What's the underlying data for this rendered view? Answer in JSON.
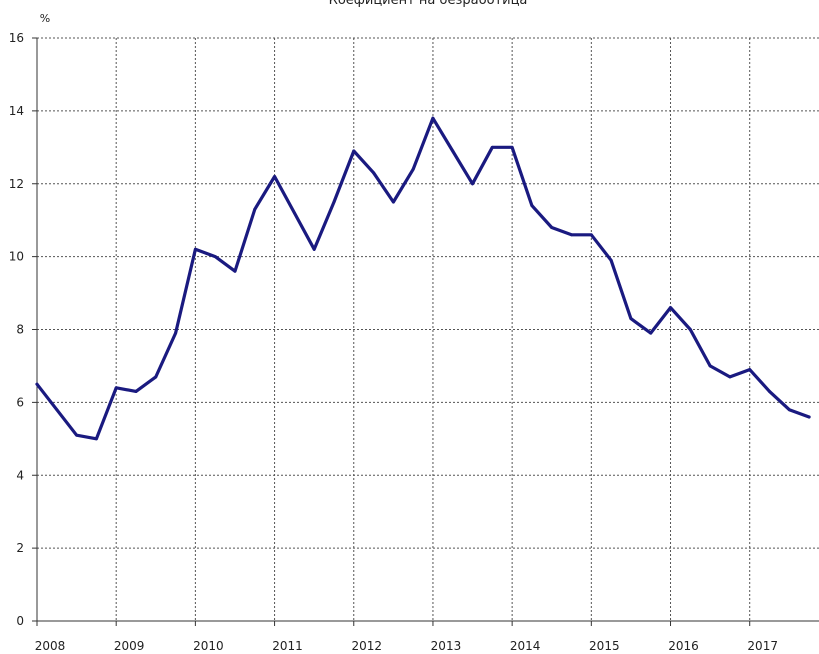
{
  "chart_data": {
    "type": "line",
    "title": "Коефициент на безработица",
    "ylabel": "%",
    "xlabel": "",
    "ylim": [
      0,
      16
    ],
    "yticks": [
      0,
      2,
      4,
      6,
      8,
      10,
      12,
      14,
      16
    ],
    "xlim": [
      2008,
      2017.875
    ],
    "xticks": [
      "2008",
      "2009",
      "2010",
      "2011",
      "2012",
      "2013",
      "2014",
      "2015",
      "2016",
      "2017"
    ],
    "grid": true,
    "line_color": "#1a1a80",
    "series": [
      {
        "x": [
          2008.0,
          2008.25,
          2008.5,
          2008.75,
          2009.0,
          2009.25,
          2009.5,
          2009.75,
          2010.0,
          2010.25,
          2010.5,
          2010.75,
          2011.0,
          2011.25,
          2011.5,
          2011.75,
          2012.0,
          2012.25,
          2012.5,
          2012.75,
          2013.0,
          2013.25,
          2013.5,
          2013.75,
          2014.0,
          2014.25,
          2014.5,
          2014.75,
          2015.0,
          2015.25,
          2015.5,
          2015.75,
          2016.0,
          2016.25,
          2016.5,
          2016.75,
          2017.0,
          2017.25,
          2017.5,
          2017.75
        ],
        "values": [
          6.5,
          5.8,
          5.1,
          5.0,
          6.4,
          6.3,
          6.7,
          7.9,
          10.2,
          10.0,
          9.6,
          11.3,
          12.2,
          11.2,
          10.2,
          11.5,
          12.9,
          12.3,
          11.5,
          12.4,
          13.8,
          12.9,
          12.0,
          13.0,
          13.0,
          11.4,
          10.8,
          10.6,
          10.6,
          9.9,
          8.3,
          7.9,
          8.6,
          8.0,
          7.0,
          6.7,
          6.9,
          6.3,
          5.8,
          5.6
        ]
      }
    ]
  }
}
